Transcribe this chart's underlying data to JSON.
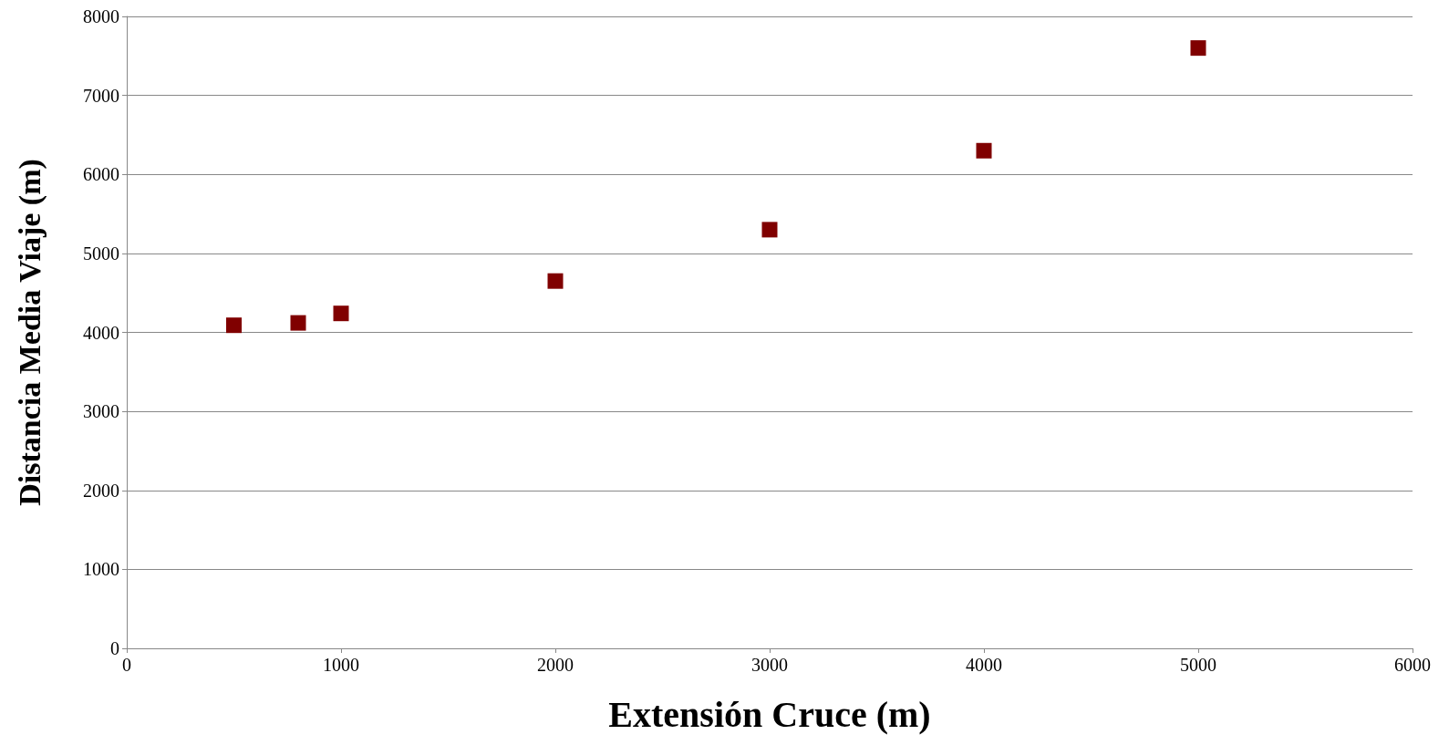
{
  "chart_data": {
    "type": "scatter",
    "xlabel": "Extensión Cruce (m)",
    "ylabel": "Distancia Media Viaje (m)",
    "x": [
      500,
      800,
      1000,
      2000,
      3000,
      4000,
      5000
    ],
    "series": [
      {
        "color": "#800000",
        "values": [
          4090,
          4120,
          4240,
          4650,
          5300,
          6300,
          7600
        ]
      }
    ],
    "xlim": [
      0,
      6000
    ],
    "xticks": [
      0,
      1000,
      2000,
      3000,
      4000,
      5000,
      6000
    ],
    "ylim": [
      0,
      8000
    ],
    "yticks": [
      0,
      1000,
      2000,
      3000,
      4000,
      5000,
      6000,
      7000,
      8000
    ],
    "grid": "y",
    "marker": "square"
  }
}
